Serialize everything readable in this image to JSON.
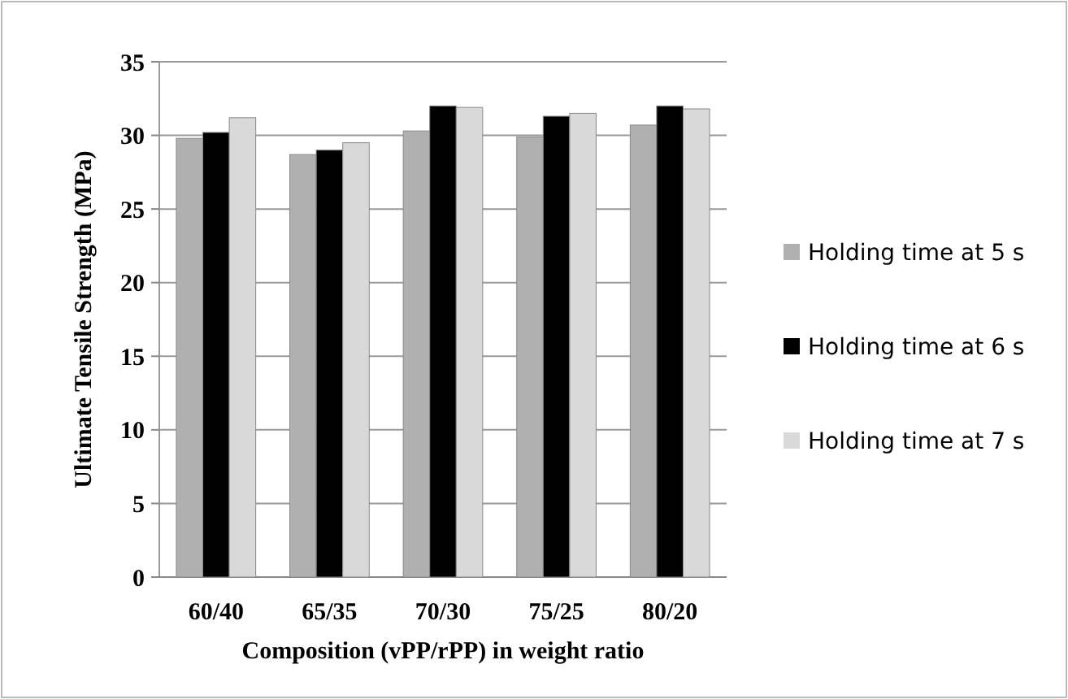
{
  "chart_data": {
    "type": "bar",
    "xlabel": "Composition  (vPP/rPP) in weight ratio",
    "ylabel": "Ultimate Tensile Strength (MPa)",
    "categories": [
      "60/40",
      "65/35",
      "70/30",
      "75/25",
      "80/20"
    ],
    "series": [
      {
        "name": "Holding time at 5 s",
        "color": "#b0b0b0",
        "values": [
          29.8,
          28.7,
          30.3,
          29.9,
          30.7
        ]
      },
      {
        "name": "Holding time at 6 s",
        "color": "#000000",
        "values": [
          30.2,
          29.0,
          32.0,
          31.3,
          32.0
        ]
      },
      {
        "name": "Holding time at 7 s",
        "color": "#d9d9d9",
        "values": [
          31.2,
          29.5,
          31.9,
          31.5,
          31.8
        ]
      }
    ],
    "ylim": [
      0,
      35
    ],
    "yticks": [
      0,
      5,
      10,
      15,
      20,
      25,
      30,
      35
    ],
    "grid": "y",
    "legend": "right"
  }
}
